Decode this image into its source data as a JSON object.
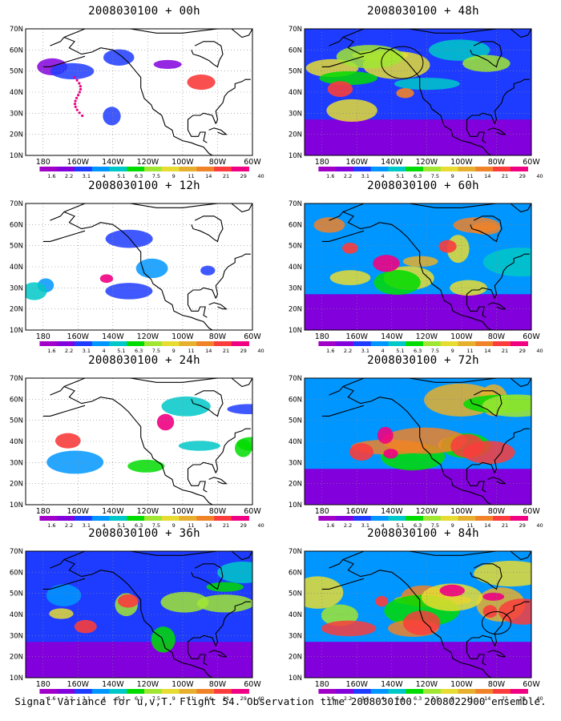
{
  "panels": [
    {
      "title": "2008030100 + 00h",
      "intensity": 0.18
    },
    {
      "title": "2008030100 + 12h",
      "intensity": 0.3
    },
    {
      "title": "2008030100 + 24h",
      "intensity": 0.4
    },
    {
      "title": "2008030100 + 36h",
      "intensity": 0.52
    },
    {
      "title": "2008030100 + 48h",
      "intensity": 0.6
    },
    {
      "title": "2008030100 + 60h",
      "intensity": 0.7
    },
    {
      "title": "2008030100 + 72h",
      "intensity": 0.8
    },
    {
      "title": "2008030100 + 84h",
      "intensity": 0.9
    }
  ],
  "lat_labels": [
    "70N",
    "60N",
    "50N",
    "40N",
    "30N",
    "20N",
    "10N"
  ],
  "lon_labels": [
    "180",
    "160W",
    "140W",
    "120W",
    "100W",
    "80W",
    "60W"
  ],
  "colorbar": {
    "labels": [
      "1.6",
      "2.2",
      "3.1",
      "4",
      "5.1",
      "6.3",
      "7.5",
      "9",
      "11",
      "14",
      "21",
      "29",
      "40"
    ],
    "colors": [
      "#a000c8",
      "#8200dc",
      "#1e3cff",
      "#0096ff",
      "#00c8c8",
      "#00dc00",
      "#a0e632",
      "#e6dc32",
      "#e6af2d",
      "#f08228",
      "#fa3c3c",
      "#f00082"
    ]
  },
  "footer": "Signal Variance for u,v,T. Flight 54. Observation time 2008030100. 2008022900 ensemble."
}
